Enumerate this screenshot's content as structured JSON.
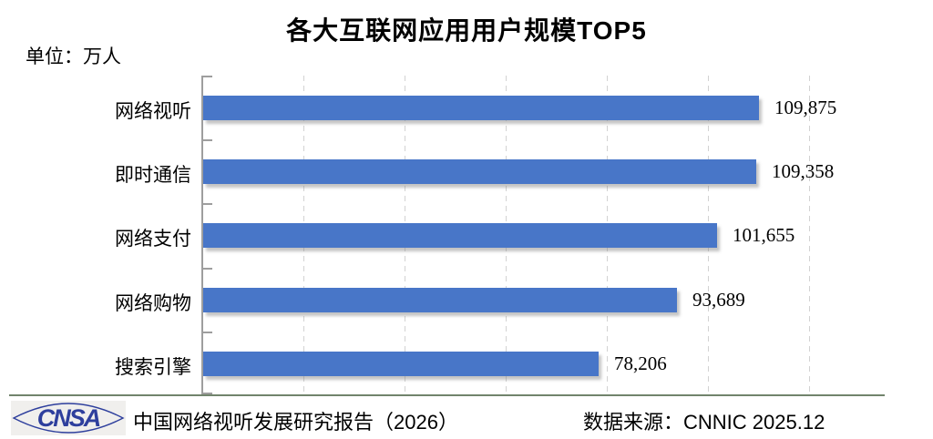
{
  "title": "各大互联网应用用户规模TOP5",
  "unit_label": "单位：万人",
  "chart_data": {
    "type": "bar",
    "orientation": "horizontal",
    "title": "各大互联网应用用户规模TOP5",
    "xlabel": "",
    "ylabel": "",
    "categories": [
      "网络视听",
      "即时通信",
      "网络支付",
      "网络购物",
      "搜索引擎"
    ],
    "values": [
      109875,
      109358,
      101655,
      93689,
      78206
    ],
    "value_labels": [
      "109,875",
      "109,358",
      "101,655",
      "93,689",
      "78,206"
    ],
    "xlim": [
      0,
      120000
    ],
    "gridline_interval": 20000,
    "grid": true,
    "legend": false,
    "bar_color": "#4876C8"
  },
  "footer": {
    "logo_text": "CNSA",
    "report_text": "中国网络视听发展研究报告（2026）",
    "source_text": "数据来源：CNNIC 2025.12"
  },
  "colors": {
    "bar": "#4876C8",
    "axis": "#9e9e9e",
    "gridline": "#d2d2d2",
    "divider": "#71846c",
    "logo_blue": "#2e3f9d",
    "logo_bg": "#f0efed",
    "text": "#000000"
  }
}
